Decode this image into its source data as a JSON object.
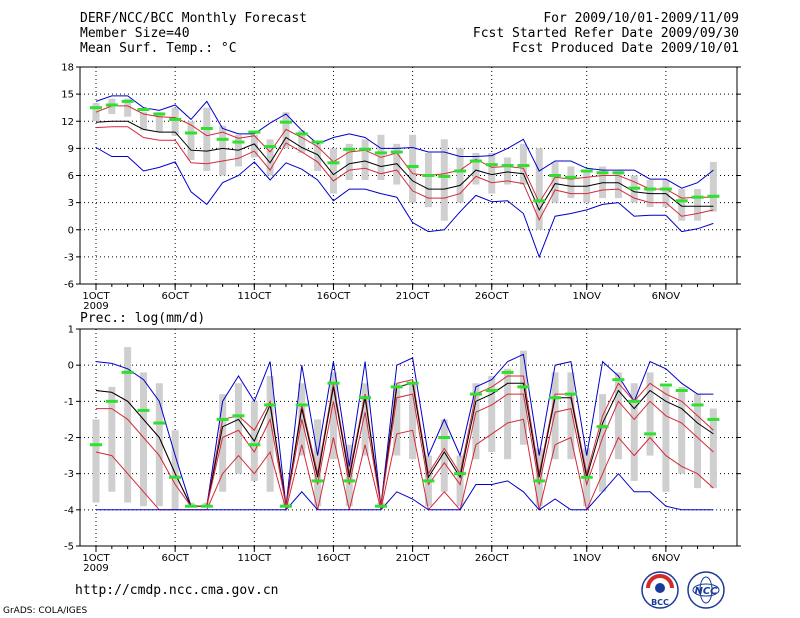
{
  "header": {
    "left": [
      "DERF/NCC/BCC Monthly Forecast",
      "Member Size=40",
      "Mean Surf. Temp.: °C"
    ],
    "right": [
      "For 2009/10/01-2009/11/09",
      "Fcst Started Refer Date 2009/09/30",
      "Fcst Produced Date 2009/10/01"
    ]
  },
  "footer": {
    "url": "http://cmdp.ncc.cma.gov.cn",
    "grads": "GrADS: COLA/IGES"
  },
  "logos": {
    "bcc": "BCC",
    "ncc": "NCC"
  },
  "colors": {
    "box": "#cfcfcf",
    "median": "#2fe02f",
    "mean": "#000000",
    "quartile": "#d42a3a",
    "extreme": "#0000cc",
    "grid": "#000000"
  },
  "chart_data": [
    {
      "type": "line",
      "title": "Mean Surf. Temp.: °C",
      "ylabel": "°C",
      "xlabel": "",
      "ylim": [
        -6,
        18
      ],
      "yticks": [
        -6,
        -3,
        0,
        3,
        6,
        9,
        12,
        15,
        18
      ],
      "grid": true,
      "x_tick_labels": [
        {
          "day": 0,
          "label": "1OCT",
          "sub": "2009"
        },
        {
          "day": 5,
          "label": "6OCT",
          "sub": ""
        },
        {
          "day": 10,
          "label": "11OCT",
          "sub": ""
        },
        {
          "day": 15,
          "label": "16OCT",
          "sub": ""
        },
        {
          "day": 20,
          "label": "21OCT",
          "sub": ""
        },
        {
          "day": 25,
          "label": "26OCT",
          "sub": ""
        },
        {
          "day": 31,
          "label": "1NOV",
          "sub": ""
        },
        {
          "day": 36,
          "label": "6NOV",
          "sub": ""
        }
      ],
      "x_days": [
        0,
        1,
        2,
        3,
        4,
        5,
        6,
        7,
        8,
        9,
        10,
        11,
        12,
        13,
        14,
        15,
        16,
        17,
        18,
        19,
        20,
        21,
        22,
        23,
        24,
        25,
        26,
        27,
        28,
        29,
        30,
        31,
        32,
        33,
        34,
        35,
        36,
        37,
        38,
        39
      ],
      "series": [
        {
          "name": "max",
          "values": [
            14.2,
            14.8,
            14.8,
            13.5,
            13.2,
            13.8,
            12.2,
            14.2,
            11.2,
            10.6,
            10.6,
            11.8,
            12.8,
            11.0,
            9.5,
            10.2,
            10.6,
            10.2,
            9.0,
            9.0,
            9.1,
            8.6,
            8.6,
            8.1,
            8.1,
            8.2,
            9.0,
            10.0,
            6.5,
            7.6,
            7.6,
            6.8,
            6.6,
            6.6,
            6.6,
            5.6,
            5.6,
            4.6,
            5.2,
            6.6
          ]
        },
        {
          "name": "q3",
          "values": [
            13.0,
            13.7,
            13.7,
            12.8,
            12.5,
            12.4,
            11.6,
            10.4,
            10.8,
            10.1,
            10.4,
            8.6,
            11.1,
            10.2,
            9.2,
            7.5,
            8.6,
            8.8,
            8.0,
            8.5,
            6.2,
            6.0,
            6.2,
            6.6,
            7.8,
            6.9,
            7.0,
            6.8,
            3.0,
            5.8,
            5.6,
            5.8,
            6.0,
            6.0,
            5.3,
            4.5,
            4.5,
            3.5,
            3.6,
            3.6
          ]
        },
        {
          "name": "mean",
          "values": [
            11.9,
            12.0,
            12.0,
            11.1,
            10.8,
            10.8,
            8.8,
            8.7,
            9.0,
            8.8,
            9.5,
            7.4,
            10.2,
            9.1,
            8.3,
            6.1,
            7.3,
            7.6,
            7.0,
            7.3,
            5.4,
            4.5,
            4.5,
            4.9,
            6.6,
            6.1,
            6.4,
            6.2,
            2.2,
            5.1,
            4.8,
            4.8,
            5.2,
            5.2,
            4.2,
            4.0,
            4.0,
            2.6,
            2.6,
            2.6
          ]
        },
        {
          "name": "q1",
          "values": [
            11.3,
            11.4,
            11.4,
            10.2,
            9.9,
            9.9,
            7.4,
            7.3,
            7.6,
            7.9,
            8.7,
            6.6,
            9.6,
            8.6,
            7.5,
            5.4,
            6.6,
            6.8,
            6.2,
            6.6,
            4.3,
            3.5,
            3.5,
            4.0,
            5.9,
            5.2,
            5.4,
            5.1,
            1.1,
            4.4,
            4.0,
            4.0,
            4.4,
            4.5,
            3.5,
            3.0,
            3.0,
            1.5,
            1.8,
            2.2
          ]
        },
        {
          "name": "min",
          "values": [
            9.1,
            8.1,
            8.1,
            6.5,
            6.9,
            7.5,
            4.2,
            2.8,
            5.2,
            6.0,
            7.5,
            5.5,
            7.4,
            6.7,
            5.5,
            3.2,
            4.5,
            4.5,
            4.0,
            3.6,
            0.8,
            -0.2,
            0.0,
            2.0,
            3.8,
            3.1,
            3.2,
            1.8,
            -3.0,
            1.5,
            1.8,
            2.2,
            2.8,
            3.0,
            1.5,
            1.6,
            1.6,
            -0.2,
            0.1,
            0.7
          ]
        }
      ],
      "box": {
        "low": [
          12.0,
          12.8,
          12.5,
          11.0,
          10.8,
          10.4,
          7.7,
          6.5,
          6.0,
          7.0,
          8.0,
          6.0,
          9.0,
          8.5,
          6.5,
          4.0,
          5.5,
          5.5,
          5.5,
          5.0,
          3.0,
          2.5,
          1.0,
          3.0,
          5.0,
          4.0,
          5.0,
          5.0,
          0.0,
          3.0,
          3.5,
          3.0,
          3.5,
          3.5,
          3.0,
          2.5,
          2.5,
          1.0,
          1.0,
          2.0
        ],
        "high": [
          14.0,
          14.5,
          14.5,
          13.0,
          13.0,
          13.5,
          12.0,
          13.5,
          11.5,
          10.5,
          10.5,
          10.0,
          13.0,
          11.0,
          9.5,
          9.0,
          9.5,
          10.0,
          10.5,
          9.5,
          10.5,
          8.5,
          10.0,
          9.0,
          8.5,
          8.5,
          8.0,
          9.5,
          9.0,
          7.5,
          7.0,
          6.5,
          7.0,
          6.5,
          6.0,
          5.5,
          5.5,
          4.5,
          4.5,
          7.5
        ],
        "median": [
          13.5,
          13.8,
          14.2,
          13.3,
          12.8,
          12.2,
          10.7,
          11.2,
          10.0,
          9.7,
          10.8,
          9.2,
          11.9,
          10.6,
          9.7,
          7.4,
          8.9,
          8.9,
          8.5,
          8.6,
          7.0,
          6.0,
          5.9,
          6.5,
          7.6,
          7.2,
          7.1,
          7.1,
          3.2,
          6.0,
          5.8,
          6.5,
          6.3,
          6.3,
          4.6,
          4.5,
          4.5,
          3.2,
          3.6,
          3.7
        ]
      }
    },
    {
      "type": "line",
      "title": "Prec.: log(mm/d)",
      "ylabel": "log(mm/d)",
      "xlabel": "",
      "ylim": [
        -5,
        1
      ],
      "yticks": [
        -5,
        -4,
        -3,
        -2,
        -1,
        0,
        1
      ],
      "grid": true,
      "x_tick_labels": [
        {
          "day": 0,
          "label": "1OCT",
          "sub": "2009"
        },
        {
          "day": 5,
          "label": "6OCT",
          "sub": ""
        },
        {
          "day": 10,
          "label": "11OCT",
          "sub": ""
        },
        {
          "day": 15,
          "label": "16OCT",
          "sub": ""
        },
        {
          "day": 20,
          "label": "21OCT",
          "sub": ""
        },
        {
          "day": 25,
          "label": "26OCT",
          "sub": ""
        },
        {
          "day": 31,
          "label": "1NOV",
          "sub": ""
        },
        {
          "day": 36,
          "label": "6NOV",
          "sub": ""
        }
      ],
      "x_days": [
        0,
        1,
        2,
        3,
        4,
        5,
        6,
        7,
        8,
        9,
        10,
        11,
        12,
        13,
        14,
        15,
        16,
        17,
        18,
        19,
        20,
        21,
        22,
        23,
        24,
        25,
        26,
        27,
        28,
        29,
        30,
        31,
        32,
        33,
        34,
        35,
        36,
        37,
        38,
        39
      ],
      "series": [
        {
          "name": "max",
          "values": [
            0.1,
            0.05,
            -0.1,
            -0.4,
            -1.0,
            -2.5,
            -3.9,
            -3.9,
            -1.0,
            -0.3,
            -1.0,
            0.1,
            -3.9,
            0.0,
            -2.5,
            0.1,
            -2.8,
            0.1,
            -3.9,
            0.0,
            0.2,
            -2.5,
            -1.5,
            -2.5,
            -0.6,
            -0.4,
            0.1,
            0.3,
            -2.5,
            0.0,
            0.1,
            -2.5,
            0.1,
            -0.3,
            -1.0,
            0.1,
            -0.1,
            -0.5,
            -0.8,
            -0.8
          ]
        },
        {
          "name": "q3",
          "values": [
            -0.7,
            -0.75,
            -1.0,
            -1.5,
            -2.0,
            -3.0,
            -3.9,
            -3.9,
            -1.5,
            -1.4,
            -1.8,
            -1.0,
            -3.9,
            -1.1,
            -3.0,
            -0.5,
            -3.0,
            -0.8,
            -3.9,
            -0.5,
            -0.4,
            -3.0,
            -2.3,
            -3.0,
            -0.8,
            -0.6,
            -0.3,
            -0.3,
            -3.0,
            -0.8,
            -0.8,
            -3.0,
            -1.4,
            -0.5,
            -1.0,
            -0.5,
            -0.8,
            -1.0,
            -1.4,
            -1.8
          ]
        },
        {
          "name": "mean",
          "values": [
            -0.7,
            -0.75,
            -1.0,
            -1.5,
            -2.0,
            -3.0,
            -3.9,
            -3.9,
            -1.7,
            -1.5,
            -2.1,
            -1.1,
            -3.9,
            -1.2,
            -3.1,
            -0.6,
            -3.1,
            -0.9,
            -3.9,
            -0.6,
            -0.5,
            -3.1,
            -2.4,
            -3.1,
            -1.0,
            -0.8,
            -0.5,
            -0.5,
            -3.1,
            -0.9,
            -0.9,
            -3.1,
            -1.6,
            -0.7,
            -1.2,
            -0.7,
            -1.0,
            -1.2,
            -1.6,
            -1.9
          ]
        },
        {
          "name": "q1",
          "values": [
            -1.2,
            -1.2,
            -1.5,
            -2.0,
            -2.5,
            -3.3,
            -3.9,
            -3.9,
            -2.0,
            -1.8,
            -2.4,
            -1.5,
            -3.9,
            -1.5,
            -3.3,
            -1.0,
            -3.3,
            -1.3,
            -3.9,
            -0.9,
            -0.8,
            -3.3,
            -2.7,
            -3.3,
            -1.3,
            -1.1,
            -0.8,
            -0.8,
            -3.3,
            -1.3,
            -1.2,
            -3.3,
            -2.0,
            -1.0,
            -1.5,
            -1.0,
            -1.4,
            -1.6,
            -2.0,
            -2.4
          ]
        },
        {
          "name": "q0",
          "values": [
            -2.4,
            -2.5,
            -3.0,
            -3.5,
            -4.0,
            -4.0,
            -4.0,
            -4.0,
            -3.0,
            -2.5,
            -3.0,
            -2.4,
            -4.0,
            -2.2,
            -4.0,
            -2.0,
            -4.0,
            -2.2,
            -4.0,
            -1.9,
            -1.8,
            -4.0,
            -3.5,
            -4.0,
            -2.2,
            -1.9,
            -1.6,
            -1.5,
            -4.0,
            -2.2,
            -2.0,
            -4.0,
            -3.0,
            -2.0,
            -2.5,
            -2.0,
            -2.5,
            -2.8,
            -3.0,
            -3.4
          ]
        },
        {
          "name": "min",
          "values": [
            -4.0,
            -4.0,
            -4.0,
            -4.0,
            -4.0,
            -4.0,
            -4.0,
            -4.0,
            -4.0,
            -4.0,
            -4.0,
            -4.0,
            -4.0,
            -3.5,
            -4.0,
            -4.0,
            -4.0,
            -4.0,
            -4.0,
            -3.5,
            -3.7,
            -4.0,
            -4.0,
            -4.0,
            -3.3,
            -3.3,
            -3.2,
            -3.5,
            -4.0,
            -3.7,
            -4.0,
            -4.0,
            -3.5,
            -3.0,
            -3.5,
            -3.5,
            -3.9,
            -4.0,
            -4.0,
            -4.0
          ]
        }
      ],
      "box": {
        "low": [
          -3.8,
          -3.5,
          -3.8,
          -3.9,
          -3.9,
          -4.0,
          -3.9,
          -3.9,
          -3.5,
          -3.0,
          -3.2,
          -3.5,
          -3.9,
          -2.5,
          -3.9,
          -2.6,
          -3.9,
          -2.5,
          -3.9,
          -2.5,
          -2.6,
          -3.9,
          -3.5,
          -3.9,
          -2.6,
          -2.4,
          -2.6,
          -2.2,
          -3.9,
          -2.6,
          -2.6,
          -3.9,
          -3.5,
          -2.6,
          -3.2,
          -2.5,
          -3.5,
          -3.0,
          -3.4,
          -3.4
        ],
        "high": [
          -1.5,
          -0.6,
          0.5,
          -0.2,
          -0.5,
          -1.8,
          -3.8,
          -3.8,
          -0.8,
          -0.5,
          -1.0,
          -0.3,
          -3.8,
          -0.5,
          -1.5,
          -0.2,
          -2.2,
          -0.5,
          -3.8,
          -0.5,
          -0.5,
          -2.5,
          -1.5,
          -2.5,
          -0.5,
          -0.3,
          -0.1,
          0.4,
          -2.3,
          -0.2,
          -0.2,
          -2.3,
          -0.8,
          -0.2,
          -0.5,
          -0.2,
          -0.6,
          -0.6,
          -0.8,
          -1.2
        ],
        "median": [
          -2.2,
          -1.0,
          -0.2,
          -1.25,
          -1.6,
          -3.1,
          -3.9,
          -3.9,
          -1.5,
          -1.4,
          -2.2,
          -1.1,
          -3.9,
          -1.1,
          -3.2,
          -0.5,
          -3.2,
          -0.9,
          -3.9,
          -0.6,
          -0.5,
          -3.2,
          -2.0,
          -3.0,
          -0.8,
          -0.7,
          -0.2,
          -0.6,
          -3.2,
          -0.9,
          -0.8,
          -3.1,
          -1.7,
          -0.4,
          -1.0,
          -1.9,
          -0.55,
          -0.7,
          -1.1,
          -1.5
        ]
      }
    }
  ]
}
